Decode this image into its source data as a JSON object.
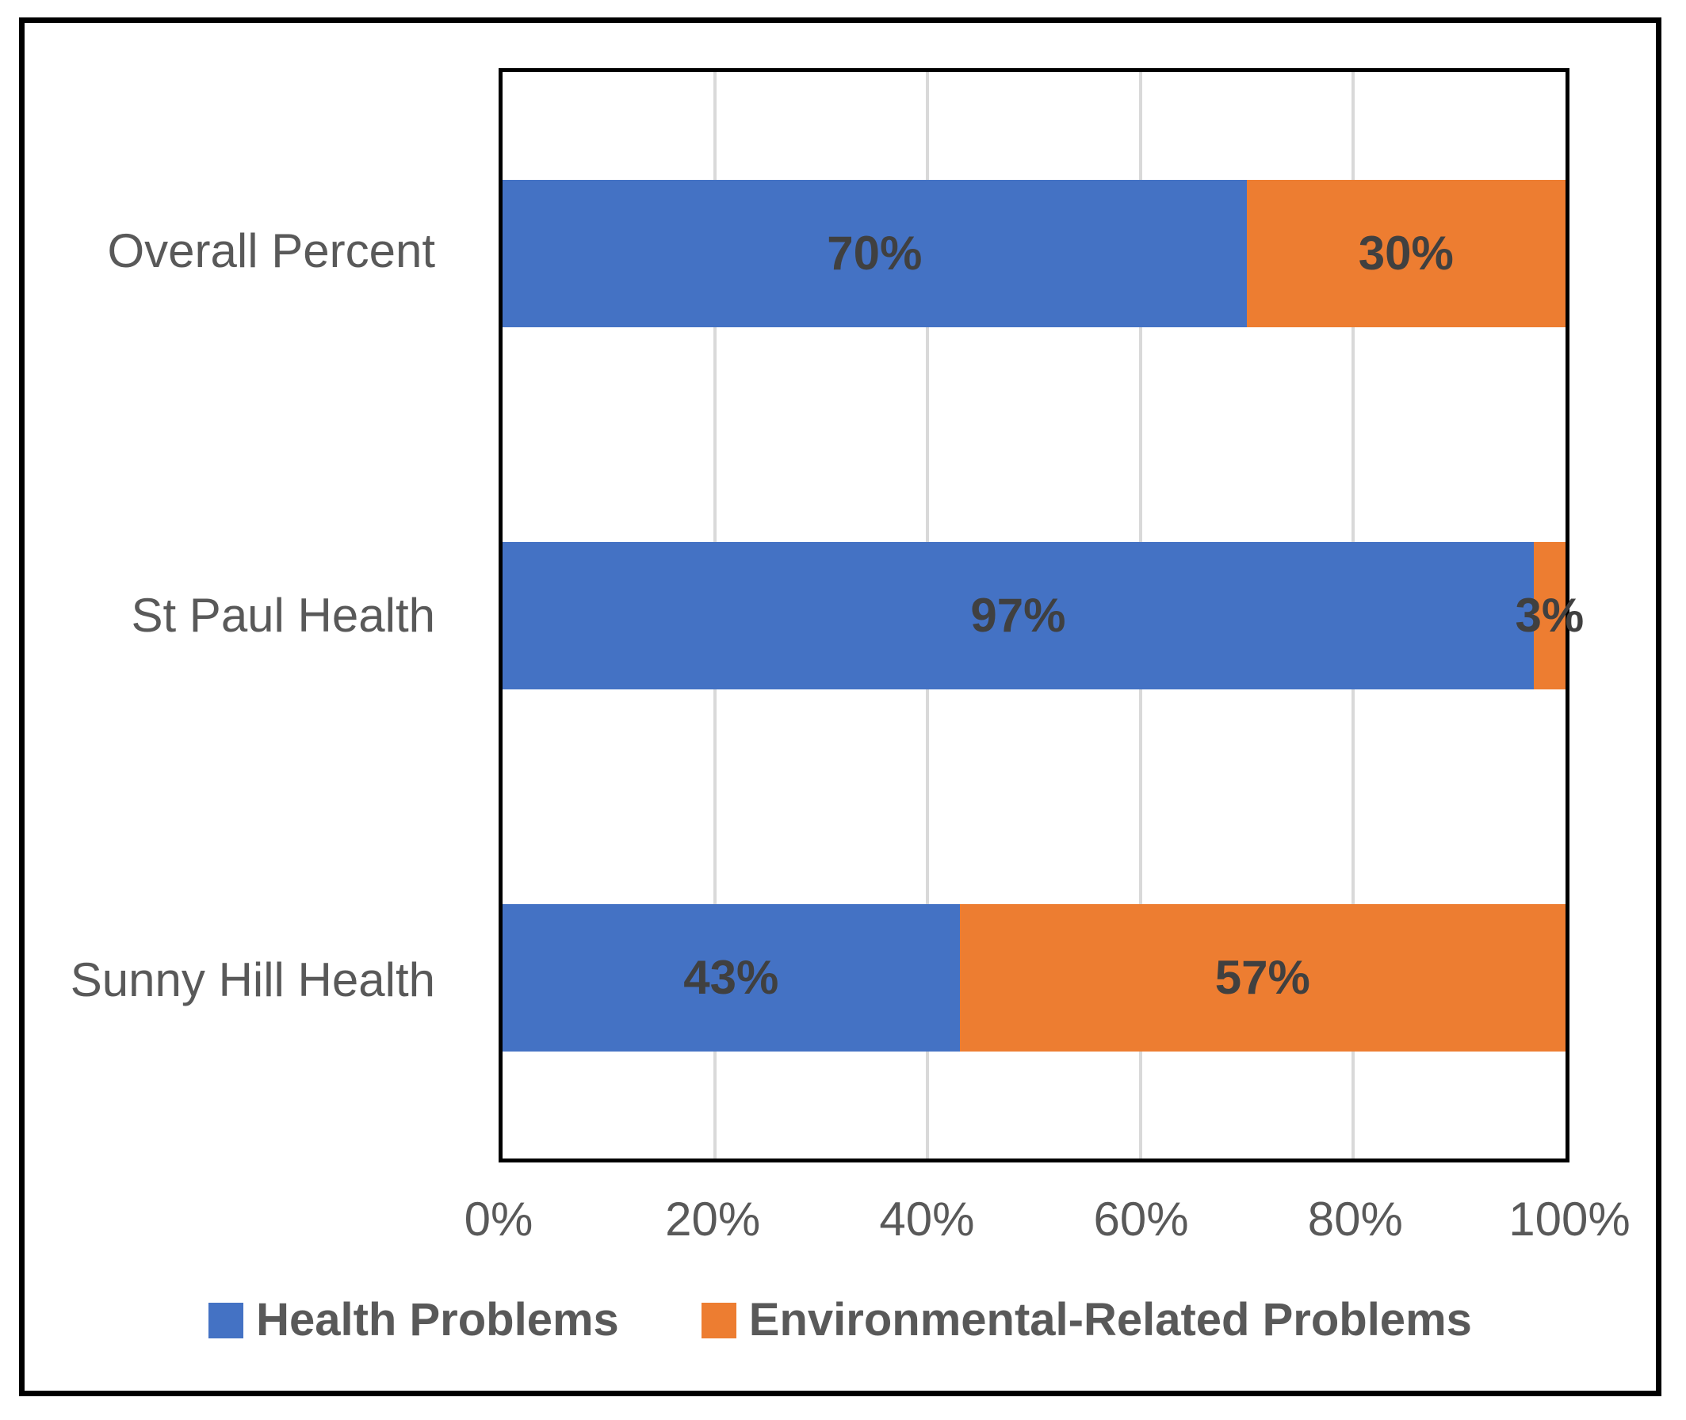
{
  "chart_data": {
    "type": "bar",
    "orientation": "horizontal",
    "stacked": true,
    "title": "",
    "categories": [
      "Overall Percent",
      "St Paul Health",
      "Sunny Hill Health"
    ],
    "series": [
      {
        "name": "Health Problems",
        "color": "#4472C4",
        "values": [
          70,
          97,
          43
        ],
        "labels": [
          "70%",
          "97%",
          "43%"
        ]
      },
      {
        "name": "Environmental-Related Problems",
        "color": "#ED7D31",
        "values": [
          30,
          3,
          57
        ],
        "labels": [
          "30%",
          "3%",
          "57%"
        ]
      }
    ],
    "xlabel": "",
    "ylabel": "",
    "xlim": [
      0,
      100
    ],
    "x_ticks": [
      {
        "value": 0,
        "label": "0%"
      },
      {
        "value": 20,
        "label": "20%"
      },
      {
        "value": 40,
        "label": "40%"
      },
      {
        "value": 60,
        "label": "60%"
      },
      {
        "value": 80,
        "label": "80%"
      },
      {
        "value": 100,
        "label": "100%"
      }
    ],
    "grid": "vertical",
    "gridline_color": "#D9D9D9",
    "legend_position": "bottom"
  },
  "colors": {
    "series_health": "#4472C4",
    "series_environment": "#ED7D31",
    "axis_text": "#595959",
    "data_label_text": "#404040",
    "border": "#000000",
    "gridline": "#D9D9D9",
    "background": "#FFFFFF"
  }
}
